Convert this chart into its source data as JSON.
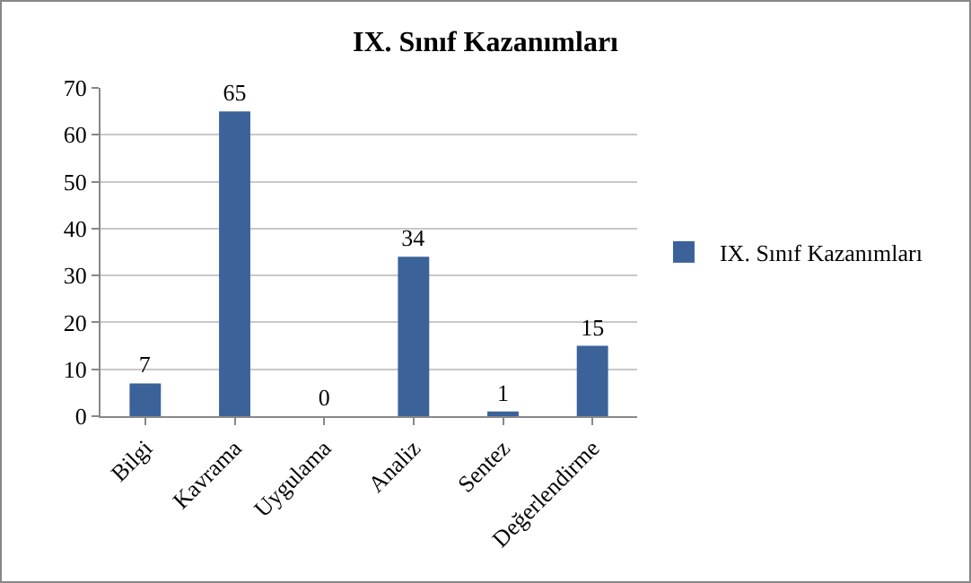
{
  "chart_data": {
    "type": "bar",
    "title": "IX. Sınıf Kazanımları",
    "categories": [
      "Bilgi",
      "Kavrama",
      "Uygulama",
      "Analiz",
      "Sentez",
      "Değerlendirme"
    ],
    "series": [
      {
        "name": "IX. Sınıf Kazanımları",
        "color": "#3b6299",
        "values": [
          7,
          65,
          0,
          34,
          1,
          15
        ]
      }
    ],
    "ylim": [
      0,
      70
    ],
    "yticks": [
      0,
      10,
      20,
      30,
      40,
      50,
      60,
      70
    ],
    "grid": "y",
    "legend": "right",
    "data_labels": true
  }
}
